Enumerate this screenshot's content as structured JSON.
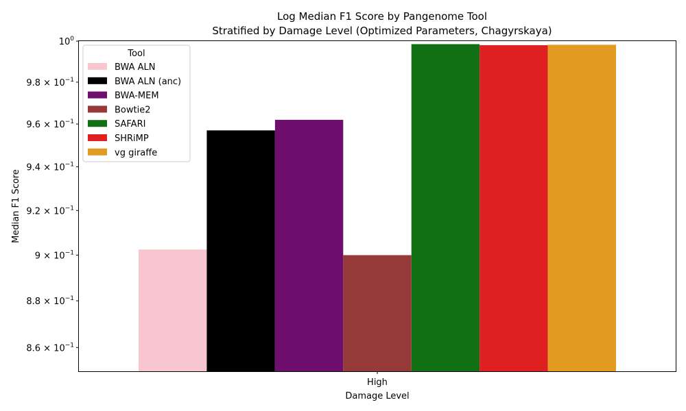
{
  "chart_data": {
    "type": "bar",
    "title_line1": "Log Median F1 Score by Pangenome Tool",
    "title_line2": "Stratified by Damage Level (Optimized Parameters, Chagyrskaya)",
    "xlabel": "Damage Level",
    "ylabel": "Median F1 Score",
    "y_scale": "log",
    "ylim": [
      0.85,
      1.0
    ],
    "categories": [
      "High"
    ],
    "yticks": [
      {
        "value": 0.86,
        "mantissa": "8.6",
        "exp": "−1"
      },
      {
        "value": 0.88,
        "mantissa": "8.8",
        "exp": "−1"
      },
      {
        "value": 0.9,
        "mantissa": "9",
        "exp": "−1"
      },
      {
        "value": 0.92,
        "mantissa": "9.2",
        "exp": "−1"
      },
      {
        "value": 0.94,
        "mantissa": "9.4",
        "exp": "−1"
      },
      {
        "value": 0.96,
        "mantissa": "9.6",
        "exp": "−1"
      },
      {
        "value": 0.98,
        "mantissa": "9.8",
        "exp": "−1"
      },
      {
        "value": 1.0,
        "mantissa": "",
        "exp": "0",
        "base": "10"
      }
    ],
    "legend": {
      "title": "Tool",
      "position": "top-left"
    },
    "grid": false,
    "series": [
      {
        "name": "BWA ALN",
        "color": "#f7c6ce",
        "values": [
          0.9025
        ]
      },
      {
        "name": "BWA ALN (anc)",
        "color": "#000000",
        "values": [
          0.957
        ]
      },
      {
        "name": "BWA-MEM",
        "color": "#6e0f6e",
        "values": [
          0.962
        ]
      },
      {
        "name": "Bowtie2",
        "color": "#953a39",
        "values": [
          0.9
        ]
      },
      {
        "name": "SAFARI",
        "color": "#117013",
        "values": [
          0.9985
        ]
      },
      {
        "name": "SHRiMP",
        "color": "#df2020",
        "values": [
          0.998
        ]
      },
      {
        "name": "vg giraffe",
        "color": "#e09b20",
        "values": [
          0.9982
        ]
      }
    ]
  }
}
